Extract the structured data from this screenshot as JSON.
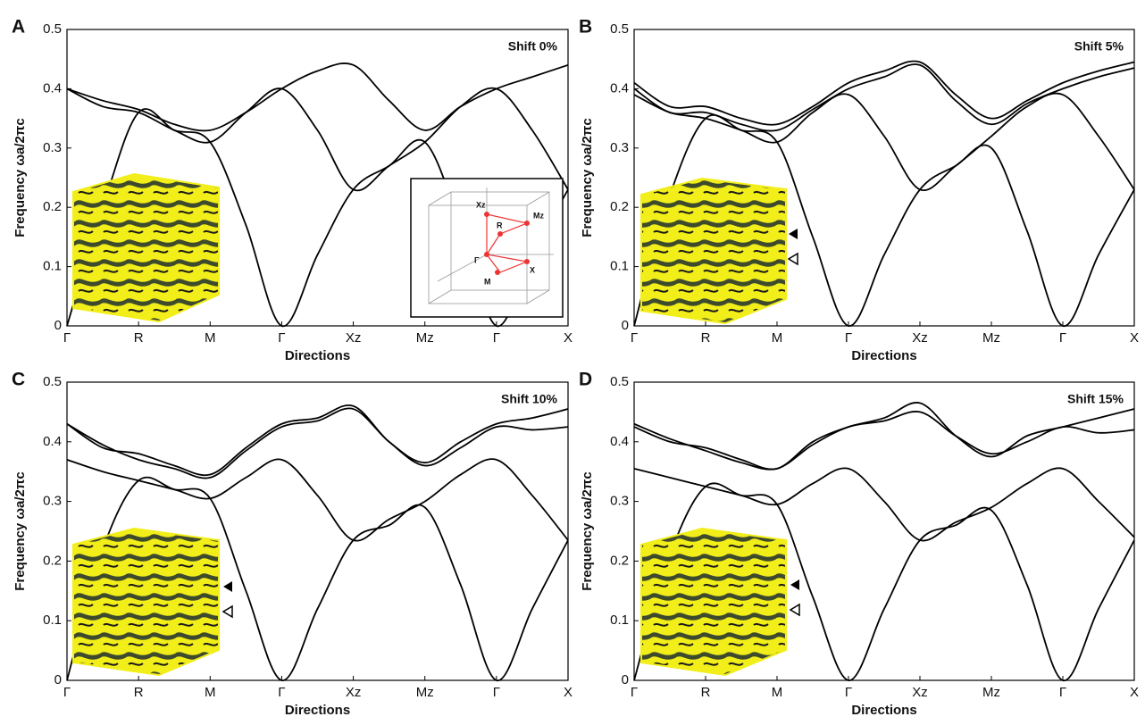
{
  "chart_data": [
    {
      "type": "line",
      "label": "A",
      "annotation": "Shift 0%",
      "ylabel": "Frequency ωa/2πc",
      "xlabel": "Directions",
      "x": [
        0,
        0.5,
        1,
        1.5,
        2,
        2.5,
        3,
        3.5,
        4,
        4.5,
        5,
        5.5,
        6,
        6.5,
        7
      ],
      "xlim": [
        0,
        7
      ],
      "xticks": [
        {
          "value": 0,
          "label": "Γ"
        },
        {
          "value": 1,
          "label": "R"
        },
        {
          "value": 2,
          "label": "M"
        },
        {
          "value": 3,
          "label": "Γ"
        },
        {
          "value": 4,
          "label": "Xz"
        },
        {
          "value": 5,
          "label": "Mz"
        },
        {
          "value": 6,
          "label": "Γ"
        },
        {
          "value": 7,
          "label": "X"
        }
      ],
      "ylim": [
        0,
        0.5
      ],
      "yticks": [
        0,
        0.1,
        0.2,
        0.3,
        0.4,
        0.5
      ],
      "series": [
        {
          "color": "#000000",
          "values": [
            0,
            0.2,
            0.36,
            0.33,
            0.31,
            0.17,
            0,
            0.12,
            0.23,
            0.27,
            0.31,
            0.17,
            0,
            0.12,
            0.23
          ]
        },
        {
          "color": "#000000",
          "values": [
            0.4,
            0.37,
            0.36,
            0.33,
            0.31,
            0.36,
            0.4,
            0.33,
            0.23,
            0.27,
            0.31,
            0.37,
            0.4,
            0.33,
            0.23
          ]
        },
        {
          "color": "#000000",
          "values": [
            0.4,
            0.38,
            0.365,
            0.34,
            0.33,
            0.36,
            0.4,
            0.43,
            0.44,
            0.38,
            0.33,
            0.37,
            0.4,
            0.42,
            0.44
          ]
        }
      ],
      "inset_labels": [
        "Xz",
        "Mz",
        "R",
        "Γ",
        "X",
        "M"
      ]
    },
    {
      "type": "line",
      "label": "B",
      "annotation": "Shift 5%",
      "ylabel": "Frequency ωa/2πc",
      "xlabel": "Directions",
      "x": [
        0,
        0.5,
        1,
        1.5,
        2,
        2.5,
        3,
        3.5,
        4,
        4.5,
        5,
        5.5,
        6,
        6.5,
        7
      ],
      "xlim": [
        0,
        7
      ],
      "xticks": [
        {
          "value": 0,
          "label": "Γ"
        },
        {
          "value": 1,
          "label": "R"
        },
        {
          "value": 2,
          "label": "M"
        },
        {
          "value": 3,
          "label": "Γ"
        },
        {
          "value": 4,
          "label": "Xz"
        },
        {
          "value": 5,
          "label": "Mz"
        },
        {
          "value": 6,
          "label": "Γ"
        },
        {
          "value": 7,
          "label": "X"
        }
      ],
      "ylim": [
        0,
        0.5
      ],
      "yticks": [
        0,
        0.1,
        0.2,
        0.3,
        0.4,
        0.5
      ],
      "series": [
        {
          "color": "#000000",
          "values": [
            0,
            0.22,
            0.35,
            0.33,
            0.31,
            0.15,
            0,
            0.12,
            0.23,
            0.27,
            0.3,
            0.16,
            0,
            0.12,
            0.23
          ]
        },
        {
          "color": "#000000",
          "values": [
            0.39,
            0.36,
            0.35,
            0.33,
            0.31,
            0.36,
            0.39,
            0.32,
            0.23,
            0.27,
            0.32,
            0.37,
            0.39,
            0.32,
            0.23
          ]
        },
        {
          "color": "#000000",
          "values": [
            0.41,
            0.37,
            0.37,
            0.35,
            0.34,
            0.37,
            0.41,
            0.43,
            0.445,
            0.39,
            0.35,
            0.38,
            0.41,
            0.43,
            0.445
          ]
        },
        {
          "color": "#000000",
          "values": [
            0.4,
            0.36,
            0.36,
            0.34,
            0.33,
            0.365,
            0.4,
            0.42,
            0.44,
            0.38,
            0.34,
            0.375,
            0.4,
            0.42,
            0.435
          ]
        }
      ]
    },
    {
      "type": "line",
      "label": "C",
      "annotation": "Shift 10%",
      "ylabel": "Frequency ωa/2πc",
      "xlabel": "Directions",
      "x": [
        0,
        0.5,
        1,
        1.5,
        2,
        2.5,
        3,
        3.5,
        4,
        4.5,
        5,
        5.5,
        6,
        6.5,
        7
      ],
      "xlim": [
        0,
        7
      ],
      "xticks": [
        {
          "value": 0,
          "label": "Γ"
        },
        {
          "value": 1,
          "label": "R"
        },
        {
          "value": 2,
          "label": "M"
        },
        {
          "value": 3,
          "label": "Γ"
        },
        {
          "value": 4,
          "label": "Xz"
        },
        {
          "value": 5,
          "label": "Mz"
        },
        {
          "value": 6,
          "label": "Γ"
        },
        {
          "value": 7,
          "label": "X"
        }
      ],
      "ylim": [
        0,
        0.5
      ],
      "yticks": [
        0,
        0.1,
        0.2,
        0.3,
        0.4,
        0.5
      ],
      "series": [
        {
          "color": "#000000",
          "values": [
            0,
            0.22,
            0.335,
            0.32,
            0.305,
            0.15,
            0,
            0.12,
            0.235,
            0.26,
            0.29,
            0.16,
            0,
            0.12,
            0.235
          ]
        },
        {
          "color": "#000000",
          "values": [
            0.37,
            0.35,
            0.335,
            0.32,
            0.305,
            0.34,
            0.37,
            0.31,
            0.235,
            0.27,
            0.3,
            0.345,
            0.37,
            0.31,
            0.235
          ]
        },
        {
          "color": "#000000",
          "values": [
            0.43,
            0.39,
            0.38,
            0.36,
            0.345,
            0.39,
            0.43,
            0.44,
            0.46,
            0.4,
            0.365,
            0.4,
            0.43,
            0.44,
            0.455
          ]
        },
        {
          "color": "#000000",
          "values": [
            0.43,
            0.395,
            0.37,
            0.355,
            0.34,
            0.385,
            0.425,
            0.435,
            0.455,
            0.4,
            0.36,
            0.39,
            0.425,
            0.42,
            0.425
          ]
        }
      ]
    },
    {
      "type": "line",
      "label": "D",
      "annotation": "Shift 15%",
      "ylabel": "Frequency ωa/2πc",
      "xlabel": "Directions",
      "x": [
        0,
        0.5,
        1,
        1.5,
        2,
        2.5,
        3,
        3.5,
        4,
        4.5,
        5,
        5.5,
        6,
        6.5,
        7
      ],
      "xlim": [
        0,
        7
      ],
      "xticks": [
        {
          "value": 0,
          "label": "Γ"
        },
        {
          "value": 1,
          "label": "R"
        },
        {
          "value": 2,
          "label": "M"
        },
        {
          "value": 3,
          "label": "Γ"
        },
        {
          "value": 4,
          "label": "Xz"
        },
        {
          "value": 5,
          "label": "Mz"
        },
        {
          "value": 6,
          "label": "Γ"
        },
        {
          "value": 7,
          "label": "X"
        }
      ],
      "ylim": [
        0,
        0.5
      ],
      "yticks": [
        0,
        0.1,
        0.2,
        0.3,
        0.4,
        0.5
      ],
      "series": [
        {
          "color": "#000000",
          "values": [
            0,
            0.21,
            0.325,
            0.31,
            0.295,
            0.14,
            0,
            0.12,
            0.235,
            0.26,
            0.285,
            0.16,
            0,
            0.12,
            0.235
          ]
        },
        {
          "color": "#000000",
          "values": [
            0.355,
            0.34,
            0.325,
            0.31,
            0.295,
            0.33,
            0.355,
            0.3,
            0.235,
            0.265,
            0.29,
            0.33,
            0.355,
            0.3,
            0.24
          ]
        },
        {
          "color": "#000000",
          "values": [
            0.425,
            0.4,
            0.39,
            0.37,
            0.355,
            0.4,
            0.425,
            0.44,
            0.465,
            0.41,
            0.375,
            0.41,
            0.425,
            0.44,
            0.455
          ]
        },
        {
          "color": "#000000",
          "values": [
            0.43,
            0.405,
            0.385,
            0.365,
            0.355,
            0.395,
            0.425,
            0.435,
            0.45,
            0.41,
            0.38,
            0.4,
            0.425,
            0.415,
            0.42
          ]
        }
      ]
    }
  ]
}
